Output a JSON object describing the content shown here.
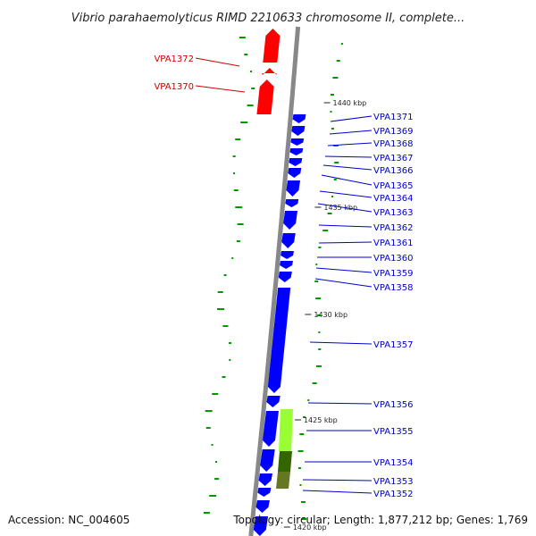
{
  "title": "Vibrio parahaemolyticus RIMD 2210633 chromosome II, complete...",
  "footer": {
    "accession": "Accession: NC_004605",
    "summary": "Topology: circular; Length: 1,877,212 bp; Genes: 1,769"
  },
  "colors": {
    "forward_gene": "#ff0000",
    "reverse_gene": "#0000ff",
    "feature_light": "#99ff33",
    "feature_dark": "#336600",
    "backbone": "#888888",
    "gc_tick": "#009900",
    "label_forward": "#cc0000",
    "label_reverse": "#0000cc"
  },
  "kbp_ticks": [
    {
      "label": "1440 kbp"
    },
    {
      "label": "1435 kbp"
    },
    {
      "label": "1430 kbp"
    },
    {
      "label": "1425 kbp"
    },
    {
      "label": "1420 kbp"
    }
  ],
  "genes": [
    {
      "id": "VPA1372",
      "strand": "forward"
    },
    {
      "id": "VPA1370",
      "strand": "forward"
    },
    {
      "id": "VPA1371",
      "strand": "reverse"
    },
    {
      "id": "VPA1369",
      "strand": "reverse"
    },
    {
      "id": "VPA1368",
      "strand": "reverse"
    },
    {
      "id": "VPA1367",
      "strand": "reverse"
    },
    {
      "id": "VPA1366",
      "strand": "reverse"
    },
    {
      "id": "VPA1365",
      "strand": "reverse"
    },
    {
      "id": "VPA1364",
      "strand": "reverse"
    },
    {
      "id": "VPA1363",
      "strand": "reverse"
    },
    {
      "id": "VPA1362",
      "strand": "reverse"
    },
    {
      "id": "VPA1361",
      "strand": "reverse"
    },
    {
      "id": "VPA1360",
      "strand": "reverse"
    },
    {
      "id": "VPA1359",
      "strand": "reverse"
    },
    {
      "id": "VPA1358",
      "strand": "reverse"
    },
    {
      "id": "VPA1357",
      "strand": "reverse"
    },
    {
      "id": "VPA1356",
      "strand": "reverse"
    },
    {
      "id": "VPA1355",
      "strand": "reverse"
    },
    {
      "id": "VPA1354",
      "strand": "reverse"
    },
    {
      "id": "VPA1353",
      "strand": "reverse"
    },
    {
      "id": "VPA1352",
      "strand": "reverse"
    }
  ]
}
